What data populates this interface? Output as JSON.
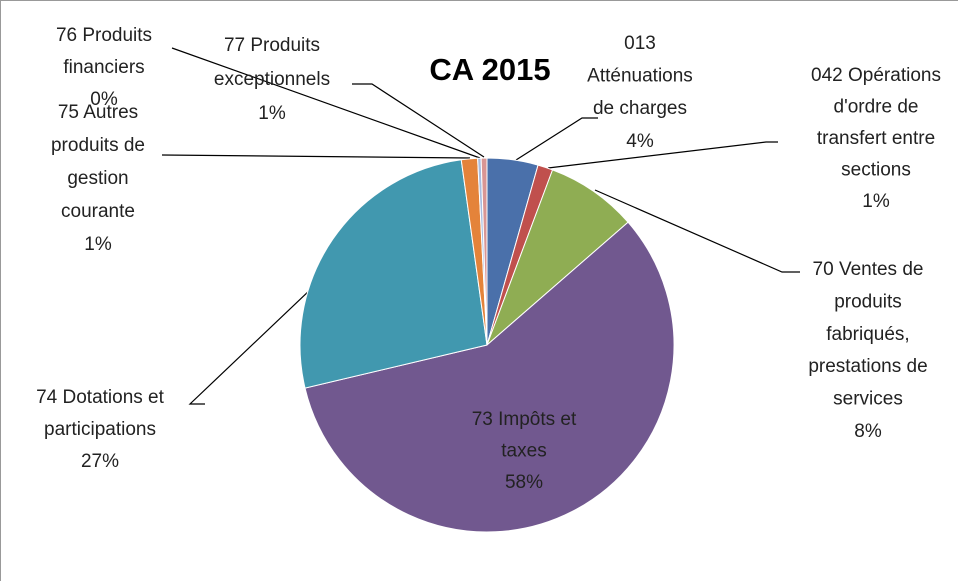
{
  "chart_data": {
    "type": "pie",
    "title": "CA 2015",
    "categories": [
      [
        "013",
        "Atténuations",
        "de charges"
      ],
      [
        "042 Opérations",
        "d'ordre de",
        "transfert entre",
        "sections"
      ],
      [
        "70 Ventes de",
        "produits",
        "fabriqués,",
        "prestations de",
        "services"
      ],
      [
        "73 Impôts et",
        "taxes"
      ],
      [
        "74 Dotations et",
        "participations"
      ],
      [
        "75 Autres",
        "produits de",
        "gestion",
        "courante"
      ],
      [
        "76 Produits",
        "financiers"
      ],
      [
        "77 Produits",
        "exceptionnels"
      ]
    ],
    "values": [
      4.4,
      1.3,
      7.9,
      57.7,
      26.5,
      1.4,
      0.3,
      0.5
    ],
    "value_labels": [
      "4%",
      "1%",
      "8%",
      "58%",
      "27%",
      "1%",
      "0%",
      "1%"
    ],
    "colors": [
      "#4a70aa",
      "#c0504d",
      "#8fad53",
      "#71588f",
      "#4198af",
      "#e4833a",
      "#a9bde0",
      "#d99694"
    ]
  }
}
